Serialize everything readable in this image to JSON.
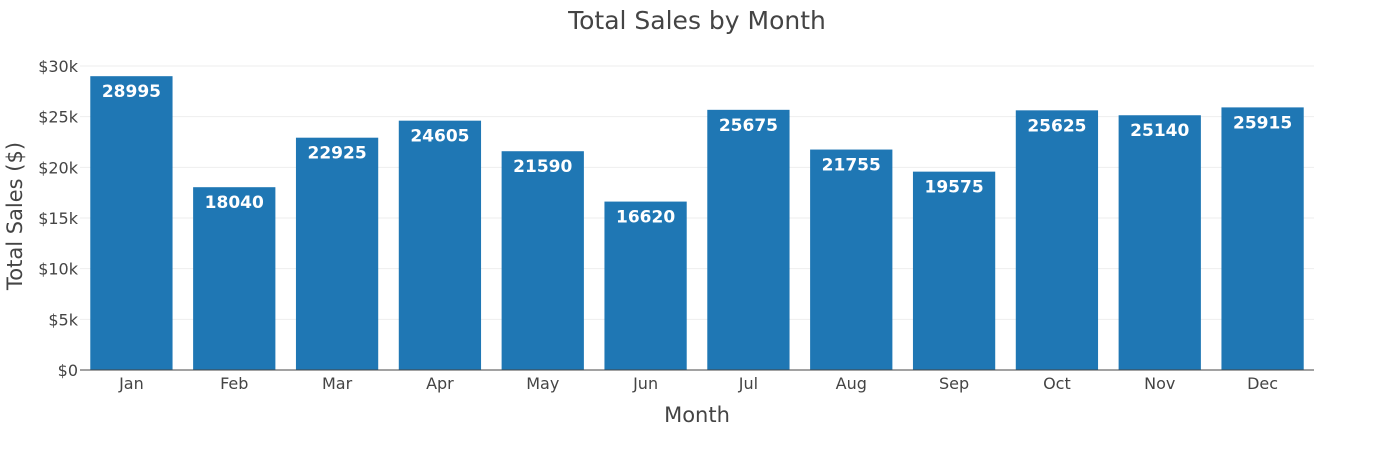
{
  "chart_data": {
    "type": "bar",
    "title": "Total Sales by Month",
    "xlabel": "Month",
    "ylabel": "Total Sales ($)",
    "categories": [
      "Jan",
      "Feb",
      "Mar",
      "Apr",
      "May",
      "Jun",
      "Jul",
      "Aug",
      "Sep",
      "Oct",
      "Nov",
      "Dec"
    ],
    "values": [
      28995,
      18040,
      22925,
      24605,
      21590,
      16620,
      25675,
      21755,
      19575,
      25625,
      25140,
      25915
    ],
    "data_labels": [
      "28995",
      "18040",
      "22925",
      "24605",
      "21590",
      "16620",
      "25675",
      "21755",
      "19575",
      "25625",
      "25140",
      "25915"
    ],
    "ylim": [
      0,
      30000
    ],
    "y_ticks": [
      0,
      5000,
      10000,
      15000,
      20000,
      25000,
      30000
    ],
    "y_tick_labels": [
      "$0",
      "$5k",
      "$10k",
      "$15k",
      "$20k",
      "$25k",
      "$30k"
    ],
    "grid": true,
    "legend": false,
    "bar_color": "#1f77b4",
    "label_color": "#ffffff",
    "text_color": "#444444",
    "grid_color": "#eeeeee"
  }
}
